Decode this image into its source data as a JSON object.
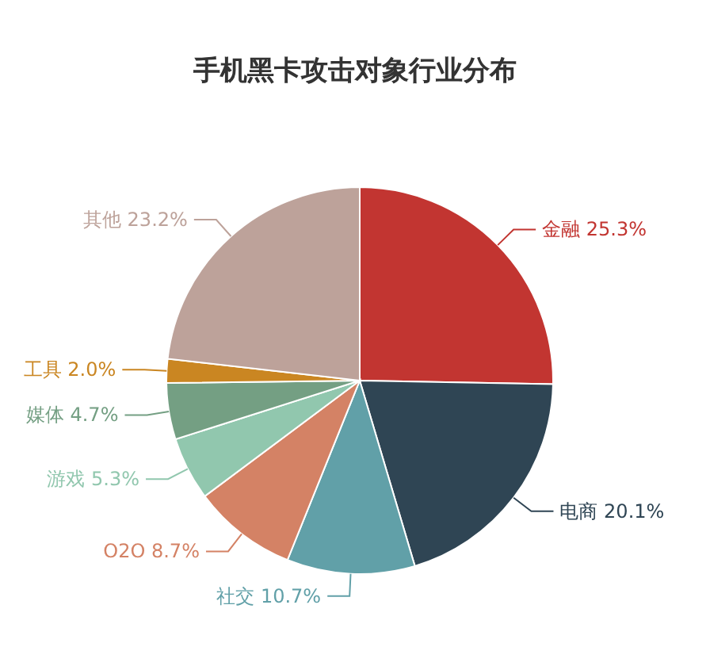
{
  "chart_data": {
    "type": "pie",
    "title": "手机黑卡攻击对象行业分布",
    "categories": [
      "金融",
      "电商",
      "社交",
      "O2O",
      "游戏",
      "媒体",
      "工具",
      "其他"
    ],
    "values": [
      25.3,
      20.1,
      10.7,
      8.7,
      5.3,
      4.7,
      2.0,
      23.2
    ],
    "value_labels": [
      "25.3%",
      "20.1%",
      "10.7%",
      "8.7%",
      "5.3%",
      "4.7%",
      "2.0%",
      "23.2%"
    ],
    "colors": [
      "#c23531",
      "#2f4554",
      "#61a0a8",
      "#d48265",
      "#91c7ae",
      "#749f83",
      "#ca8622",
      "#bda29a"
    ],
    "legend": false
  }
}
